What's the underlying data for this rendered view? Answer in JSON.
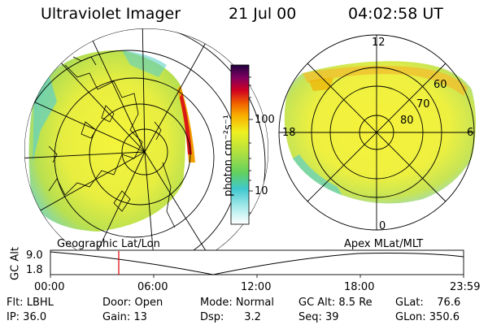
{
  "header": {
    "title": "Ultraviolet Imager",
    "date": "21 Jul 00",
    "time": "04:02:58 UT"
  },
  "left_panel": {
    "caption": "Geographic Lat/Lon"
  },
  "right_panel": {
    "caption": "Apex MLat/MLT",
    "mlt_labels": [
      "12",
      "18",
      "6",
      "0"
    ],
    "lat_labels": [
      "60",
      "70",
      "80"
    ]
  },
  "colorbar": {
    "unit": "photon cm⁻²s⁻¹",
    "ticks": [
      "100",
      "10"
    ],
    "scale": "log"
  },
  "altitude_plot": {
    "ylabel": "GC Alt",
    "yticks": [
      "9.0",
      "1.8"
    ],
    "xticks": [
      "00:00",
      "06:00",
      "12:00",
      "18:00",
      "23:59"
    ],
    "marker_color": "#e00000"
  },
  "info": {
    "col1": [
      "Flt: LBHL",
      "IP: 36.0"
    ],
    "col2": [
      "Door: Open",
      "Gain: 13"
    ],
    "col3": [
      "Mode: Normal",
      "Dsp:      3.2"
    ],
    "col4": [
      "GC Alt: 8.5 Re",
      "Seq: 39"
    ],
    "col5": [
      "GLat:    76.6",
      "GLon: 350.6"
    ]
  }
}
